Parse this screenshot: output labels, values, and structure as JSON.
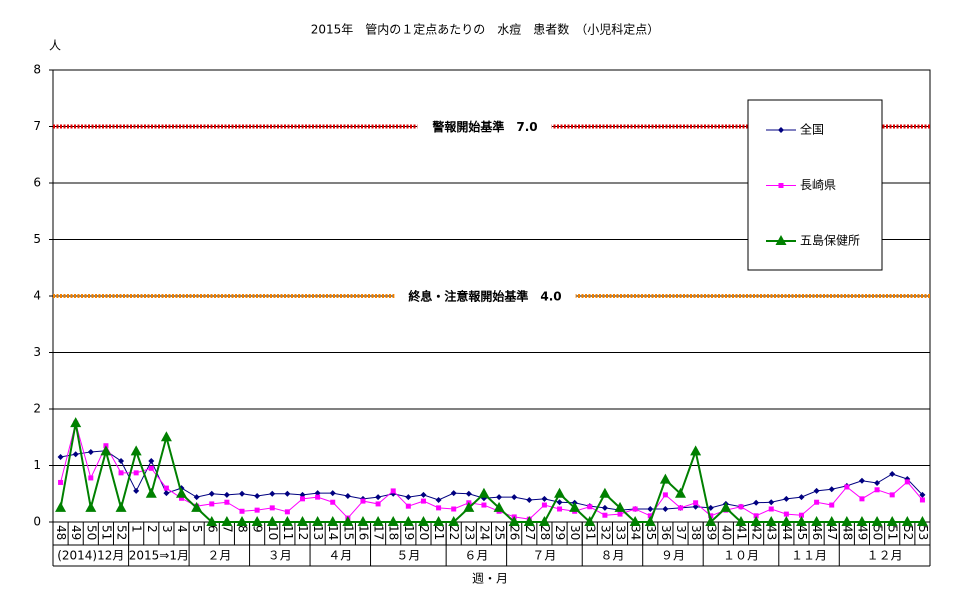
{
  "chart_data": {
    "type": "line",
    "title": "2015年　管内の１定点あたりの　水痘　患者数　（小児科定点）",
    "y_label": "人",
    "x_label": "週・月",
    "categories": [
      "48",
      "49",
      "50",
      "51",
      "52",
      "1",
      "2",
      "3",
      "4",
      "5",
      "6",
      "7",
      "8",
      "9",
      "10",
      "11",
      "12",
      "13",
      "14",
      "15",
      "16",
      "17",
      "18",
      "19",
      "20",
      "21",
      "22",
      "23",
      "24",
      "25",
      "26",
      "27",
      "28",
      "29",
      "30",
      "31",
      "32",
      "33",
      "34",
      "35",
      "36",
      "37",
      "38",
      "39",
      "40",
      "41",
      "42",
      "43",
      "44",
      "45",
      "46",
      "47",
      "48",
      "49",
      "50",
      "51",
      "52",
      "53"
    ],
    "month_groups": [
      {
        "label": "(2014)12月",
        "span": 5
      },
      {
        "label": "2015⇒1月",
        "span": 4
      },
      {
        "label": "２月",
        "span": 4
      },
      {
        "label": "３月",
        "span": 4
      },
      {
        "label": "４月",
        "span": 4
      },
      {
        "label": "５月",
        "span": 5
      },
      {
        "label": "６月",
        "span": 4
      },
      {
        "label": "７月",
        "span": 5
      },
      {
        "label": "８月",
        "span": 4
      },
      {
        "label": "９月",
        "span": 4
      },
      {
        "label": "１０月",
        "span": 5
      },
      {
        "label": "１１月",
        "span": 4
      },
      {
        "label": "１２月",
        "span": 6
      }
    ],
    "ylim": [
      0,
      8
    ],
    "yticks": [
      0,
      1,
      2,
      3,
      4,
      5,
      6,
      7,
      8
    ],
    "grid": true,
    "reference_lines": [
      {
        "label": "警報開始基準　7.0",
        "value": 7.0,
        "color": "#e00000"
      },
      {
        "label": "終息・注意報開始基準　4.0",
        "value": 4.0,
        "color": "#f08000"
      }
    ],
    "series": [
      {
        "name": "全国",
        "color": "#000080",
        "marker": "diamond",
        "values": [
          1.15,
          1.2,
          1.24,
          1.26,
          1.08,
          0.55,
          1.08,
          0.51,
          0.6,
          0.44,
          0.5,
          0.48,
          0.5,
          0.46,
          0.5,
          0.5,
          0.48,
          0.51,
          0.51,
          0.46,
          0.41,
          0.44,
          0.5,
          0.44,
          0.48,
          0.39,
          0.51,
          0.5,
          0.42,
          0.44,
          0.44,
          0.39,
          0.41,
          0.35,
          0.34,
          0.28,
          0.25,
          0.21,
          0.23,
          0.23,
          0.23,
          0.25,
          0.27,
          0.25,
          0.32,
          0.27,
          0.34,
          0.35,
          0.41,
          0.44,
          0.55,
          0.58,
          0.64,
          0.73,
          0.69,
          0.85,
          0.76,
          0.48
        ]
      },
      {
        "name": "長崎県",
        "color": "#ff00ff",
        "marker": "square",
        "values": [
          0.7,
          1.75,
          0.78,
          1.35,
          0.87,
          0.87,
          0.95,
          0.6,
          0.42,
          0.28,
          0.32,
          0.35,
          0.19,
          0.21,
          0.25,
          0.18,
          0.41,
          0.44,
          0.35,
          0.07,
          0.37,
          0.32,
          0.55,
          0.28,
          0.37,
          0.25,
          0.23,
          0.34,
          0.3,
          0.19,
          0.09,
          0.05,
          0.3,
          0.23,
          0.19,
          0.27,
          0.12,
          0.14,
          0.23,
          0.11,
          0.48,
          0.25,
          0.34,
          0.11,
          0.21,
          0.27,
          0.11,
          0.23,
          0.14,
          0.12,
          0.35,
          0.3,
          0.62,
          0.41,
          0.57,
          0.48,
          0.71,
          0.39
        ]
      },
      {
        "name": "五島保健所",
        "color": "#008000",
        "marker": "triangle",
        "values": [
          0.25,
          1.75,
          0.25,
          1.25,
          0.25,
          1.25,
          0.5,
          1.5,
          0.5,
          0.25,
          0,
          0,
          0,
          0,
          0,
          0,
          0,
          0,
          0,
          0,
          0,
          0,
          0,
          0,
          0,
          0,
          0,
          0.25,
          0.5,
          0.25,
          0,
          0,
          0,
          0.5,
          0.25,
          0,
          0.5,
          0.25,
          0,
          0,
          0.75,
          0.5,
          1.25,
          0,
          0.25,
          0,
          0,
          0,
          0,
          0,
          0,
          0,
          0,
          0,
          0,
          0,
          0,
          0
        ]
      }
    ]
  }
}
